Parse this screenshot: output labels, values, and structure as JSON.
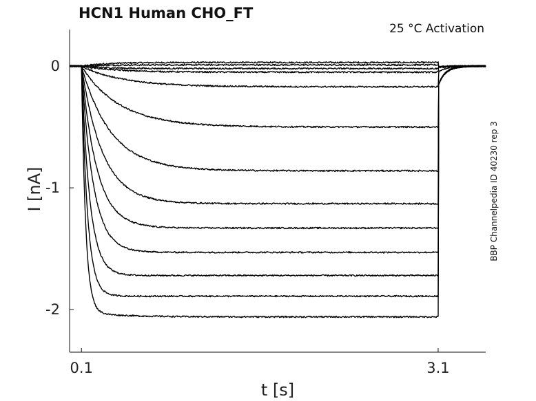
{
  "chart_data": {
    "type": "line",
    "title": "HCN1  Human  CHO_FT",
    "annotation": "25 °C  Activation",
    "side_label": "BBP Channelpedia ID 40230 rep 3",
    "xlabel": "t [s]",
    "ylabel": "I [nA]",
    "xlim": [
      0,
      3.5
    ],
    "ylim": [
      -2.35,
      0.3
    ],
    "x_ticks": [
      0.1,
      3.1
    ],
    "x_tick_labels": [
      "0.1",
      "3.1"
    ],
    "y_ticks": [
      0,
      -1,
      -2
    ],
    "y_tick_labels": [
      "0",
      "-1",
      "-2"
    ],
    "grid": false,
    "legend": "none",
    "pulse_start": 0.1,
    "pulse_end": 3.1,
    "line_color": "#000000",
    "series_steady_state_nA": [
      0.03,
      0.01,
      -0.02,
      -0.05,
      -0.17,
      -0.5,
      -0.86,
      -1.13,
      -1.33,
      -1.53,
      -1.72,
      -1.89,
      -2.06
    ],
    "series_time_constants_s": [
      0.2,
      0.2,
      0.2,
      0.3,
      0.35,
      0.32,
      0.25,
      0.18,
      0.13,
      0.1,
      0.07,
      0.05,
      0.035
    ]
  }
}
